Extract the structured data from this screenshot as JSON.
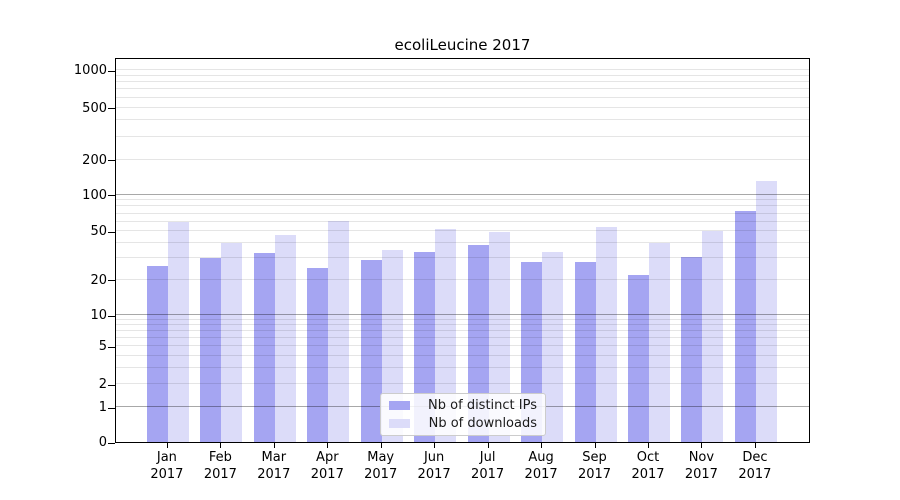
{
  "chart_data": {
    "type": "bar",
    "title": "ecoliLeucine 2017",
    "categories": [
      "Jan",
      "Feb",
      "Mar",
      "Apr",
      "May",
      "Jun",
      "Jul",
      "Aug",
      "Sep",
      "Oct",
      "Nov",
      "Dec"
    ],
    "year_label": "2017",
    "series": [
      {
        "name": "Nb of distinct IPs",
        "color": "#a5a5f2",
        "values": [
          26,
          30,
          33,
          25,
          29,
          34,
          39,
          28,
          28,
          22,
          31,
          74
        ]
      },
      {
        "name": "Nb of downloads",
        "color": "#dcdcf9",
        "values": [
          60,
          40,
          47,
          61,
          35,
          52,
          49,
          34,
          54,
          40,
          50,
          130
        ]
      }
    ],
    "y_axis": {
      "scale": "symlog",
      "tick_labels": [
        "0",
        "1",
        "2",
        "5",
        "10",
        "20",
        "50",
        "100",
        "200",
        "500",
        "1000"
      ],
      "tick_values": [
        0,
        1,
        2,
        5,
        10,
        20,
        50,
        100,
        200,
        500,
        1000
      ],
      "major_gridline_values": [
        1,
        10,
        100
      ],
      "minor_gridline_values": [
        2,
        3,
        4,
        5,
        6,
        7,
        8,
        9,
        20,
        30,
        40,
        50,
        60,
        70,
        80,
        90,
        200,
        300,
        400,
        500,
        600,
        700,
        800,
        900,
        1000
      ],
      "ylim": [
        0,
        1300
      ]
    },
    "xlabel": "",
    "ylabel": "",
    "grid": true,
    "legend_position": "lower center"
  }
}
